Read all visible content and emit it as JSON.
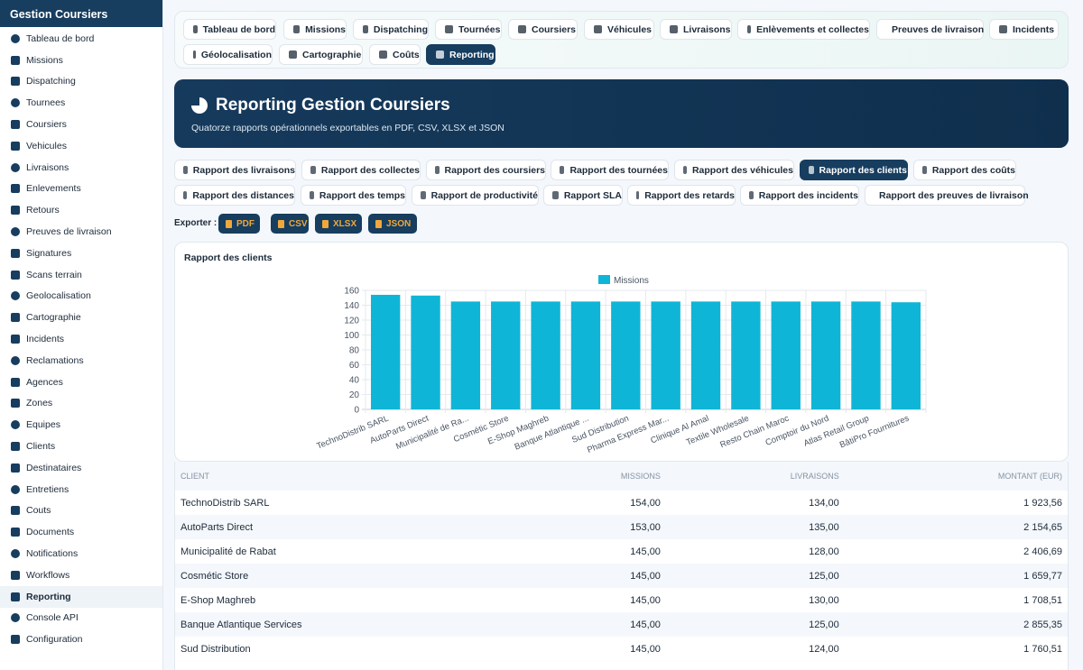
{
  "sidebar": {
    "title": "Gestion Coursiers",
    "items": [
      {
        "label": "Tableau de bord",
        "icon": "dashboard-icon"
      },
      {
        "label": "Missions",
        "icon": "bike-icon"
      },
      {
        "label": "Dispatching",
        "icon": "shuffle-icon"
      },
      {
        "label": "Tournees",
        "icon": "signpost-icon"
      },
      {
        "label": "Coursiers",
        "icon": "bicycle-icon"
      },
      {
        "label": "Vehicules",
        "icon": "truck-icon"
      },
      {
        "label": "Livraisons",
        "icon": "truck-fast-icon"
      },
      {
        "label": "Enlevements",
        "icon": "dolly-icon"
      },
      {
        "label": "Retours",
        "icon": "rotate-left-icon"
      },
      {
        "label": "Preuves de livraison",
        "icon": "clipboard-check-icon"
      },
      {
        "label": "Signatures",
        "icon": "signature-icon"
      },
      {
        "label": "Scans terrain",
        "icon": "qrcode-icon"
      },
      {
        "label": "Geolocalisation",
        "icon": "satellite-icon"
      },
      {
        "label": "Cartographie",
        "icon": "map-icon"
      },
      {
        "label": "Incidents",
        "icon": "warning-icon"
      },
      {
        "label": "Reclamations",
        "icon": "comment-icon"
      },
      {
        "label": "Agences",
        "icon": "building-icon"
      },
      {
        "label": "Zones",
        "icon": "network-icon"
      },
      {
        "label": "Equipes",
        "icon": "users-icon"
      },
      {
        "label": "Clients",
        "icon": "briefcase-icon"
      },
      {
        "label": "Destinataires",
        "icon": "user-tag-icon"
      },
      {
        "label": "Entretiens",
        "icon": "tools-icon"
      },
      {
        "label": "Couts",
        "icon": "coins-icon"
      },
      {
        "label": "Documents",
        "icon": "folder-icon"
      },
      {
        "label": "Notifications",
        "icon": "bell-icon"
      },
      {
        "label": "Workflows",
        "icon": "workflow-icon"
      },
      {
        "label": "Reporting",
        "icon": "chart-pie-icon"
      },
      {
        "label": "Console API",
        "icon": "plug-icon"
      },
      {
        "label": "Configuration",
        "icon": "gear-icon"
      }
    ],
    "active_index": 26
  },
  "topnav": {
    "items": [
      "Tableau de bord",
      "Missions",
      "Dispatching",
      "Tournées",
      "Coursiers",
      "Véhicules",
      "Livraisons",
      "Enlèvements et collectes",
      "Preuves de livraison",
      "Incidents",
      "Géolocalisation",
      "Cartographie",
      "Coûts",
      "Reporting"
    ],
    "active_index": 13
  },
  "hero": {
    "title": "Reporting Gestion Coursiers",
    "subtitle": "Quatorze rapports opérationnels exportables en PDF, CSV, XLSX et JSON"
  },
  "report_tabs": {
    "items": [
      "Rapport des livraisons",
      "Rapport des collectes",
      "Rapport des coursiers",
      "Rapport des tournées",
      "Rapport des véhicules",
      "Rapport des clients",
      "Rapport des coûts",
      "Rapport des distances",
      "Rapport des temps",
      "Rapport de productivité",
      "Rapport SLA",
      "Rapport des retards",
      "Rapport des incidents",
      "Rapport des preuves de livraison"
    ],
    "active_index": 5
  },
  "export": {
    "label": "Exporter :",
    "formats": [
      "PDF",
      "CSV",
      "XLSX",
      "JSON"
    ],
    "accent_color": "#f0a83a"
  },
  "chart": {
    "card_title": "Rapport des clients"
  },
  "chart_data": {
    "type": "bar",
    "title": "",
    "xlabel": "",
    "ylabel": "",
    "legend": "top-center",
    "grid": true,
    "color": "#0fb5d6",
    "categories": [
      "TechnoDistrib SARL",
      "AutoParts Direct",
      "Municipalité de Ra...",
      "Cosmétic Store",
      "E-Shop Maghreb",
      "Banque Atlantique ...",
      "Sud Distribution",
      "Pharma Express Mar...",
      "Clinique Al Amal",
      "Textile Wholesale",
      "Resto Chain Maroc",
      "Comptoir du Nord",
      "Atlas Retail Group",
      "BâtiPro Fournitures"
    ],
    "series": [
      {
        "name": "Missions",
        "values": [
          154,
          153,
          145,
          145,
          145,
          145,
          145,
          145,
          145,
          145,
          145,
          145,
          145,
          144
        ]
      }
    ],
    "ylim": [
      0,
      160
    ],
    "yticks": [
      0,
      20,
      40,
      60,
      80,
      100,
      120,
      140,
      160
    ]
  },
  "table": {
    "headers": [
      "CLIENT",
      "MISSIONS",
      "LIVRAISONS",
      "MONTANT (EUR)"
    ],
    "rows": [
      [
        "TechnoDistrib SARL",
        "154,00",
        "134,00",
        "1 923,56"
      ],
      [
        "AutoParts Direct",
        "153,00",
        "135,00",
        "2 154,65"
      ],
      [
        "Municipalité de Rabat",
        "145,00",
        "128,00",
        "2 406,69"
      ],
      [
        "Cosmétic Store",
        "145,00",
        "125,00",
        "1 659,77"
      ],
      [
        "E-Shop Maghreb",
        "145,00",
        "130,00",
        "1 708,51"
      ],
      [
        "Banque Atlantique Services",
        "145,00",
        "125,00",
        "2 855,35"
      ],
      [
        "Sud Distribution",
        "145,00",
        "124,00",
        "1 760,51"
      ]
    ]
  }
}
